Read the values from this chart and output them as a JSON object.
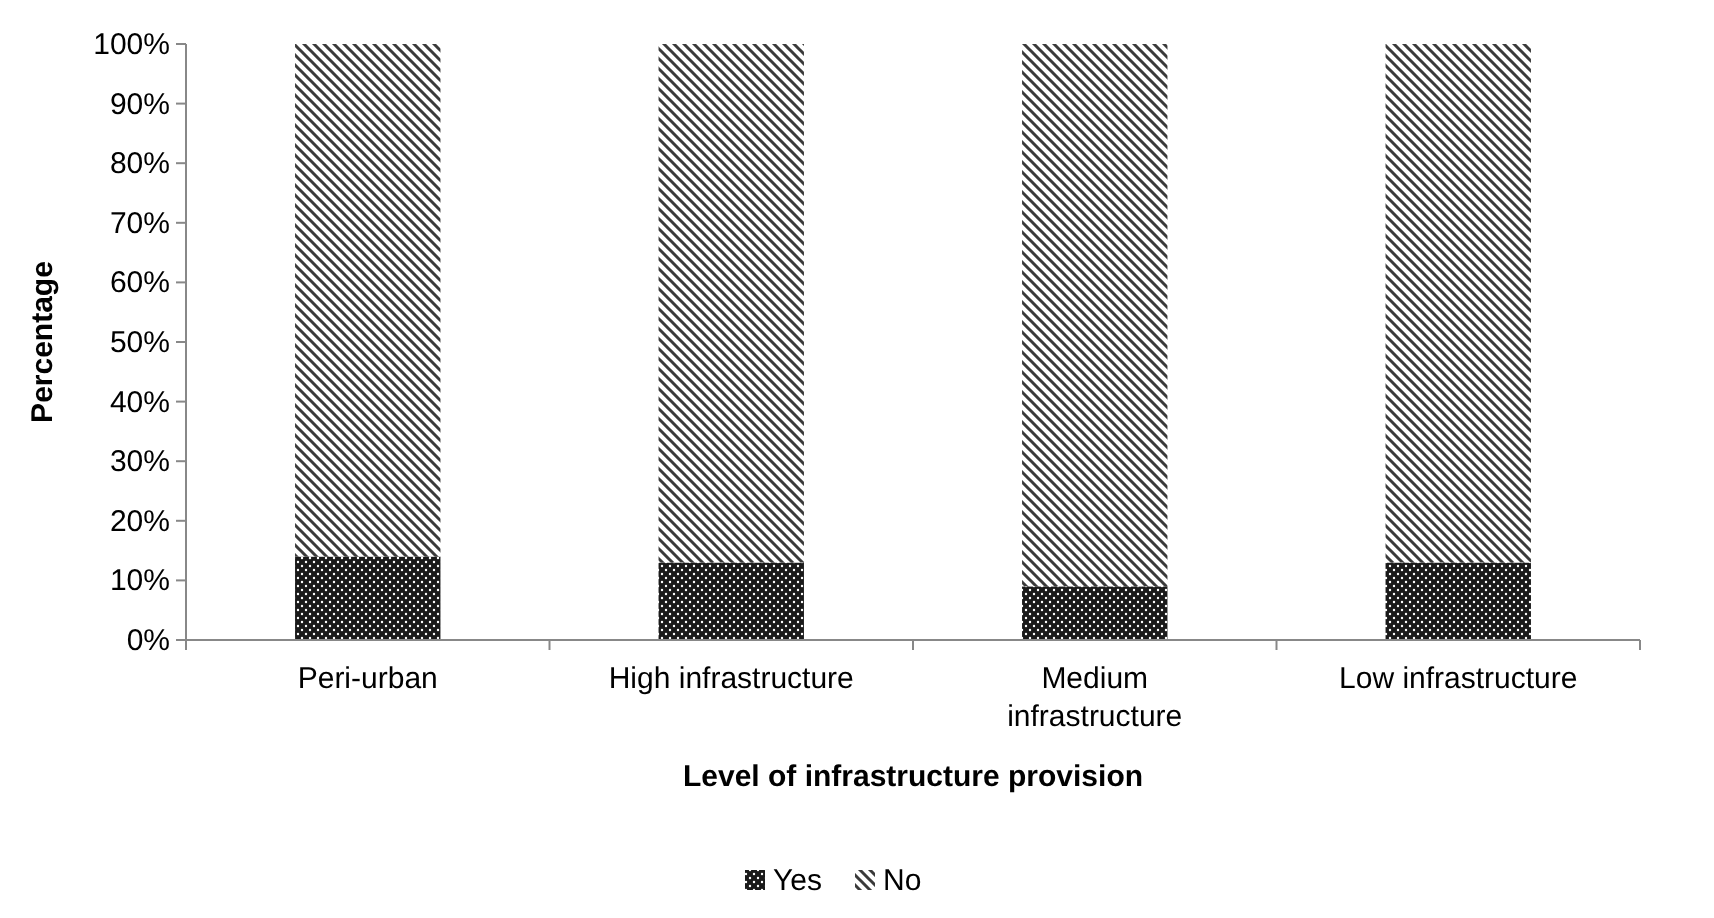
{
  "chart_data": {
    "type": "bar",
    "stacked": true,
    "xlabel": "Level of infrastructure provision",
    "ylabel": "Percentage",
    "categories": [
      "Peri-urban",
      "High infrastructure",
      "Medium infrastructure",
      "Low infrastructure"
    ],
    "series": [
      {
        "name": "Yes",
        "color": "#1a1a1a",
        "values": [
          14,
          13,
          9,
          13
        ]
      },
      {
        "name": "No",
        "color": "#3a3a3a",
        "values": [
          86,
          87,
          91,
          87
        ]
      }
    ],
    "ylim": [
      0,
      100
    ],
    "yticks": [
      {
        "value": 0,
        "label": "0%"
      },
      {
        "value": 10,
        "label": "10%"
      },
      {
        "value": 20,
        "label": "20%"
      },
      {
        "value": 30,
        "label": "30%"
      },
      {
        "value": 40,
        "label": "40%"
      },
      {
        "value": 50,
        "label": "50%"
      },
      {
        "value": 60,
        "label": "60%"
      },
      {
        "value": 70,
        "label": "70%"
      },
      {
        "value": 80,
        "label": "80%"
      },
      {
        "value": 90,
        "label": "90%"
      },
      {
        "value": 100,
        "label": "100%"
      }
    ],
    "grid": false,
    "legend": "bottom"
  }
}
